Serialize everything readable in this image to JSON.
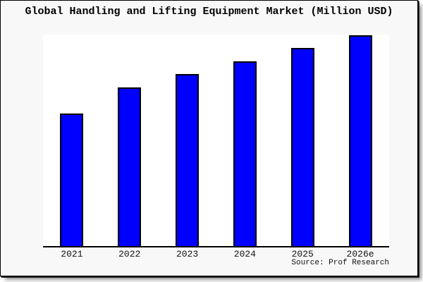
{
  "chart_data": {
    "type": "bar",
    "title": "Global Handling and Lifting Equipment Market (Million USD)",
    "categories": [
      "2021",
      "2022",
      "2023",
      "2024",
      "2025",
      "2026e"
    ],
    "values_pct_of_max": [
      62.9,
      75.3,
      81.6,
      87.6,
      94.0,
      100
    ],
    "xlabel": "",
    "ylabel": "",
    "y_axis_tick_labels_visible": false,
    "grid": false,
    "legend_visible": false,
    "source": "Source: Prof Research",
    "colors": {
      "bar_fill": "#0000ff",
      "bar_border": "#000000",
      "plot_background": "#ffffff",
      "panel_background": "#f8f8f8",
      "axis_line": "#000000",
      "text": "#000000"
    }
  }
}
